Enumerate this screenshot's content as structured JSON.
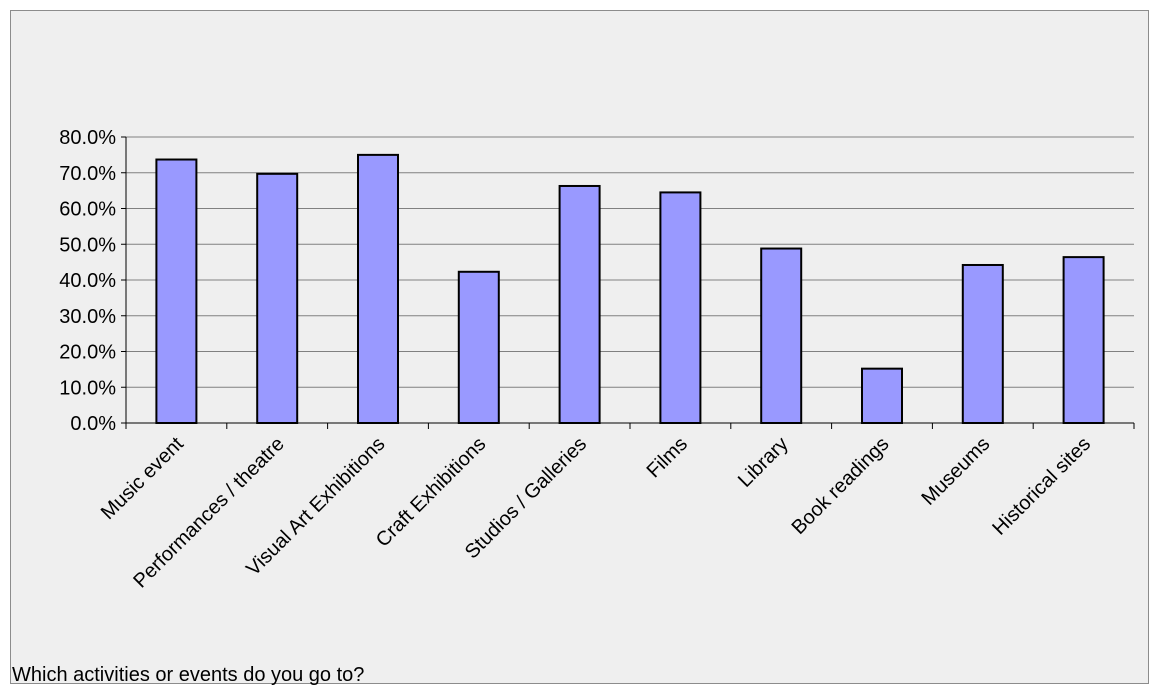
{
  "chart_data": {
    "type": "bar",
    "caption": "Which activities or events do you go to?",
    "categories": [
      "Music event",
      "Performances / theatre",
      "Visual Art Exhibitions",
      "Craft Exhibitions",
      "Studios / Galleries",
      "Films",
      "Library",
      "Book readings",
      "Museums",
      "Historical sites"
    ],
    "values": [
      73.7,
      69.7,
      75.0,
      42.3,
      66.3,
      64.5,
      48.8,
      15.2,
      44.2,
      46.4
    ],
    "ylim": [
      0,
      80
    ],
    "y_ticks": [
      "0.0%",
      "10.0%",
      "20.0%",
      "30.0%",
      "40.0%",
      "50.0%",
      "60.0%",
      "70.0%",
      "80.0%"
    ],
    "grid": true,
    "legend": "none",
    "colors": {
      "bar_fill": "#9999ff",
      "bar_stroke": "#000000",
      "background": "#efefef",
      "gridline": "#808080"
    }
  }
}
